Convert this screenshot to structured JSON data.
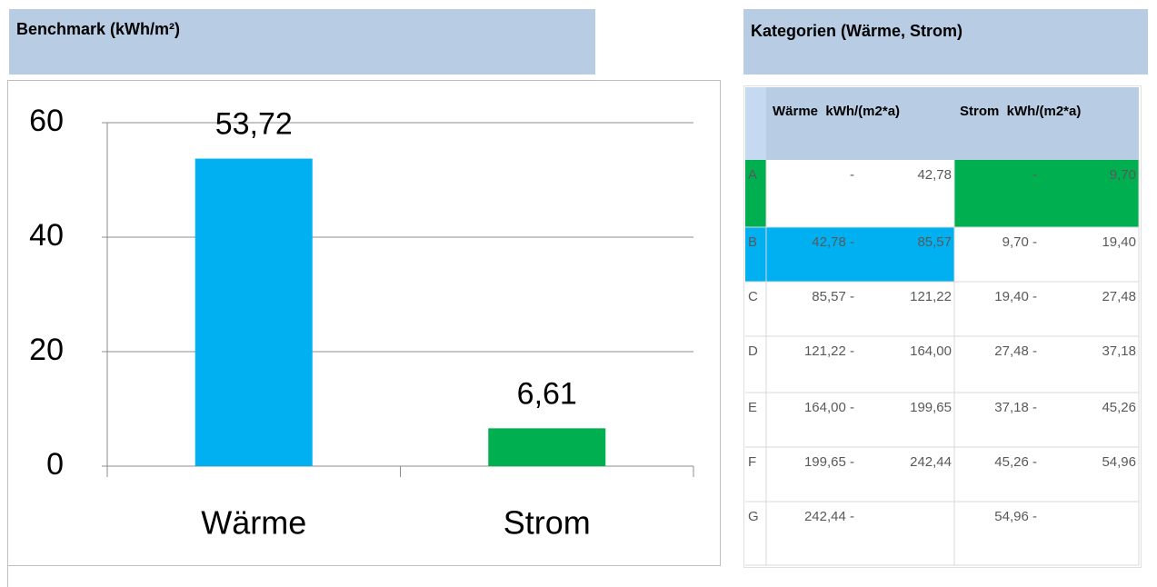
{
  "header": {
    "left_title": "Benchmark (kWh/m²)",
    "right_title": "Kategorien (Wärme, Strom)"
  },
  "chart_data": {
    "type": "bar",
    "categories": [
      "Wärme",
      "Strom"
    ],
    "values": [
      53.72,
      6.61
    ],
    "value_labels": [
      "53,72",
      "6,61"
    ],
    "colors": [
      "#00b0f0",
      "#00b050"
    ],
    "ylim": [
      0,
      60
    ],
    "yticks": [
      0,
      20,
      40,
      60
    ],
    "grid": true
  },
  "table": {
    "columns": [
      "Wärme  kWh/(m2*a)",
      "Strom  kWh/(m2*a)"
    ],
    "rows": [
      {
        "key": "A",
        "waerme_from": "-",
        "waerme_to": "42,78",
        "strom_from": "-",
        "strom_to": "9,70"
      },
      {
        "key": "B",
        "waerme_from": "42,78 -",
        "waerme_to": "85,57",
        "strom_from": "9,70 -",
        "strom_to": "19,40"
      },
      {
        "key": "C",
        "waerme_from": "85,57 -",
        "waerme_to": "121,22",
        "strom_from": "19,40 -",
        "strom_to": "27,48"
      },
      {
        "key": "D",
        "waerme_from": "121,22 -",
        "waerme_to": "164,00",
        "strom_from": "27,48 -",
        "strom_to": "37,18"
      },
      {
        "key": "E",
        "waerme_from": "164,00 -",
        "waerme_to": "199,65",
        "strom_from": "37,18 -",
        "strom_to": "45,26"
      },
      {
        "key": "F",
        "waerme_from": "199,65 -",
        "waerme_to": "242,44",
        "strom_from": "45,26 -",
        "strom_to": "54,96"
      },
      {
        "key": "G",
        "waerme_from": "242,44 -",
        "strom_from": "54,96 -"
      }
    ]
  }
}
